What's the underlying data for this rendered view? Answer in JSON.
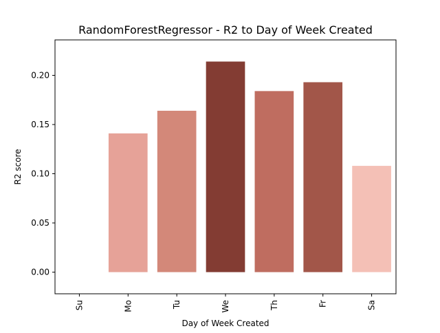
{
  "chart_data": {
    "type": "bar",
    "title": "RandomForestRegressor - R2 to Day of Week Created",
    "xlabel": "Day of Week Created",
    "ylabel": "R2 score",
    "categories": [
      "Su",
      "Mo",
      "Tu",
      "We",
      "Th",
      "Fr",
      "Sa"
    ],
    "values": [
      0.0,
      0.141,
      0.164,
      0.214,
      0.184,
      0.193,
      0.108
    ],
    "colors": [
      "#ffffff",
      "#e6a298",
      "#d38879",
      "#833c33",
      "#bf6d60",
      "#a25649",
      "#f4c0b6"
    ],
    "ylim": [
      -0.022,
      0.236
    ],
    "yticks": [
      0.0,
      0.05,
      0.1,
      0.15,
      0.2
    ],
    "ytick_labels": [
      "0.00",
      "0.05",
      "0.10",
      "0.15",
      "0.20"
    ],
    "grid": false,
    "legend": "none"
  }
}
